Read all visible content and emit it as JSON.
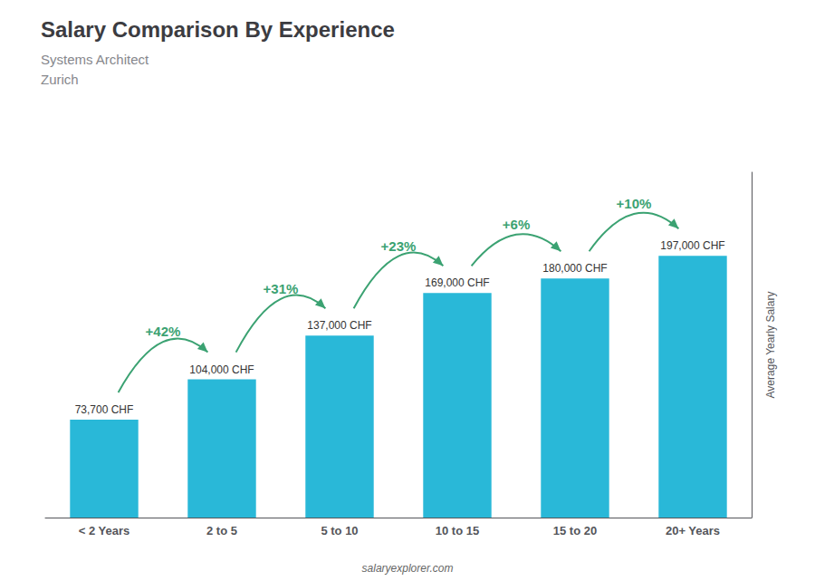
{
  "chart_data": {
    "type": "bar",
    "title": "Salary Comparison By Experience",
    "subtitle": [
      "Systems Architect",
      "Zurich"
    ],
    "ylabel": "Average Yearly Salary",
    "categories": [
      "< 2 Years",
      "2 to 5",
      "5 to 10",
      "10 to 15",
      "15 to 20",
      "20+ Years"
    ],
    "values": [
      73700,
      104000,
      137000,
      169000,
      180000,
      197000
    ],
    "value_labels": [
      "73,700 CHF",
      "104,000 CHF",
      "137,000 CHF",
      "169,000 CHF",
      "180,000 CHF",
      "197,000 CHF"
    ],
    "data_labels": true,
    "color": "#29b8d8",
    "ylim": [
      0,
      260000
    ],
    "tick_labels": "x",
    "grid": false,
    "annotations": [
      {
        "text": "+42%",
        "from": "< 2 Years",
        "to": "2 to 5"
      },
      {
        "text": "+31%",
        "from": "2 to 5",
        "to": "5 to 10"
      },
      {
        "text": "+23%",
        "from": "5 to 10",
        "to": "10 to 15"
      },
      {
        "text": "+6%",
        "from": "10 to 15",
        "to": "15 to 20"
      },
      {
        "text": "+10%",
        "from": "15 to 20",
        "to": "20+ Years"
      },
      {
        "text": "salaryexplorer.com"
      }
    ]
  }
}
